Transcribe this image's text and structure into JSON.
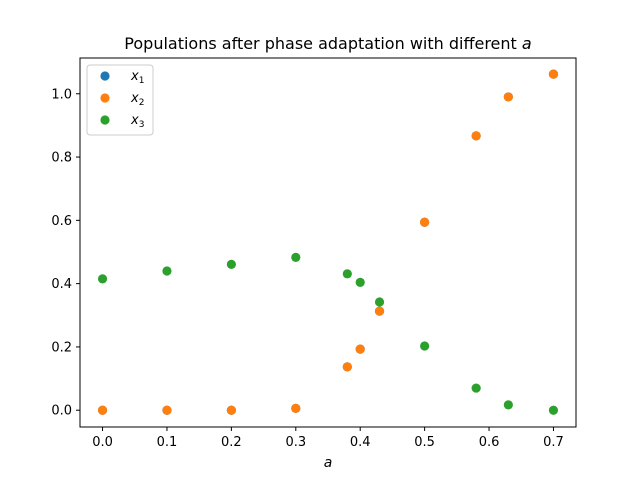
{
  "chart_data": {
    "type": "scatter",
    "title_prefix": "Populations after phase adaptation with different ",
    "title_var": "a",
    "xlabel": "a",
    "ylabel": "",
    "xlim": [
      -0.035,
      0.735
    ],
    "ylim": [
      -0.053,
      1.113
    ],
    "xticks": [
      "0.0",
      "0.1",
      "0.2",
      "0.3",
      "0.4",
      "0.5",
      "0.6",
      "0.7"
    ],
    "yticks": [
      "0.0",
      "0.2",
      "0.4",
      "0.6",
      "0.8",
      "1.0"
    ],
    "grid": false,
    "legend_position": "top-left",
    "x": [
      0.0,
      0.1,
      0.2,
      0.3,
      0.38,
      0.4,
      0.43,
      0.5,
      0.58,
      0.63,
      0.7
    ],
    "series": [
      {
        "name": "x",
        "subscript": "1",
        "color": "#1f77b4",
        "values": [
          0.0,
          0.0,
          0.0,
          0.006,
          0.137,
          0.193,
          0.313,
          0.594,
          0.867,
          0.99,
          1.062
        ]
      },
      {
        "name": "x",
        "subscript": "2",
        "color": "#ff7f0e",
        "values": [
          0.0,
          0.0,
          0.0,
          0.006,
          0.137,
          0.193,
          0.313,
          0.594,
          0.867,
          0.99,
          1.062
        ]
      },
      {
        "name": "x",
        "subscript": "3",
        "color": "#2ca02c",
        "values": [
          0.415,
          0.44,
          0.461,
          0.483,
          0.431,
          0.404,
          0.342,
          0.203,
          0.07,
          0.017,
          0.0
        ]
      }
    ]
  }
}
